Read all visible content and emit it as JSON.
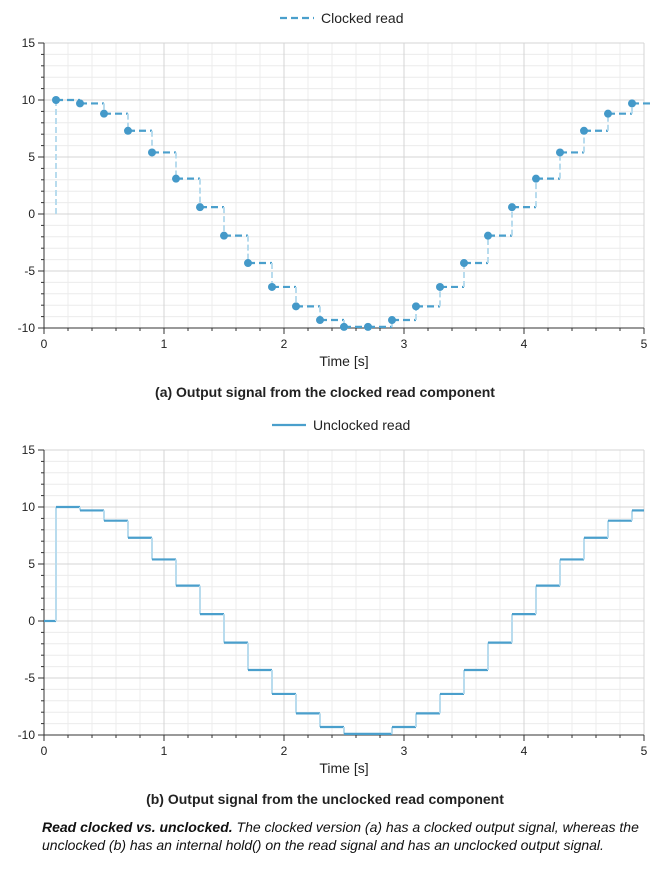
{
  "chart_data": [
    {
      "type": "line",
      "style": "dashed-step-with-markers",
      "legend": "Clocked read",
      "legend_position": "top-center",
      "xlabel": "Time [s]",
      "ylabel": "",
      "xlim": [
        0,
        5
      ],
      "ylim": [
        -10,
        15
      ],
      "xticks": [
        "0",
        "1",
        "2",
        "3",
        "4",
        "5"
      ],
      "yticks": [
        "-10",
        "-5",
        "0",
        "5",
        "10",
        "15"
      ],
      "grid": true,
      "color": "#4a9fcc",
      "caption": "(a)  Output signal from the clocked read component",
      "x": [
        0.1,
        0.3,
        0.5,
        0.7,
        0.9,
        1.1,
        1.3,
        1.5,
        1.7,
        1.9,
        2.1,
        2.3,
        2.5,
        2.7,
        2.9,
        3.1,
        3.3,
        3.5,
        3.7,
        3.9,
        4.1,
        4.3,
        4.5,
        4.7,
        4.9
      ],
      "y": [
        10,
        9.7,
        8.8,
        7.3,
        5.4,
        3.1,
        0.6,
        -1.9,
        -4.3,
        -6.4,
        -8.1,
        -9.3,
        -9.9,
        -9.9,
        -9.3,
        -8.1,
        -6.4,
        -4.3,
        -1.9,
        0.6,
        3.1,
        5.4,
        7.3,
        8.8,
        9.7
      ],
      "initial_value": 0
    },
    {
      "type": "line",
      "style": "solid-step",
      "legend": "Unclocked read",
      "legend_position": "top-center",
      "xlabel": "Time [s]",
      "ylabel": "",
      "xlim": [
        0,
        5
      ],
      "ylim": [
        -10,
        15
      ],
      "xticks": [
        "0",
        "1",
        "2",
        "3",
        "4",
        "5"
      ],
      "yticks": [
        "-10",
        "-5",
        "0",
        "5",
        "10",
        "15"
      ],
      "grid": true,
      "color": "#4a9fcc",
      "caption": "(b)  Output signal from the unclocked read component",
      "x": [
        0,
        0.1,
        0.3,
        0.5,
        0.7,
        0.9,
        1.1,
        1.3,
        1.5,
        1.7,
        1.9,
        2.1,
        2.3,
        2.5,
        2.7,
        2.9,
        3.1,
        3.3,
        3.5,
        3.7,
        3.9,
        4.1,
        4.3,
        4.5,
        4.7,
        4.9,
        5
      ],
      "y": [
        0,
        10,
        9.7,
        8.8,
        7.3,
        5.4,
        3.1,
        0.6,
        -1.9,
        -4.3,
        -6.4,
        -8.1,
        -9.3,
        -9.9,
        -9.9,
        -9.3,
        -8.1,
        -6.4,
        -4.3,
        -1.9,
        0.6,
        3.1,
        5.4,
        7.3,
        8.8,
        9.7,
        9.7
      ]
    }
  ],
  "note": {
    "bold": "Read clocked vs. unclocked.",
    "text": " The clocked version (a) has a clocked output signal, whereas the unclocked (b) has an internal hold() on the read signal and has an unclocked output signal."
  }
}
